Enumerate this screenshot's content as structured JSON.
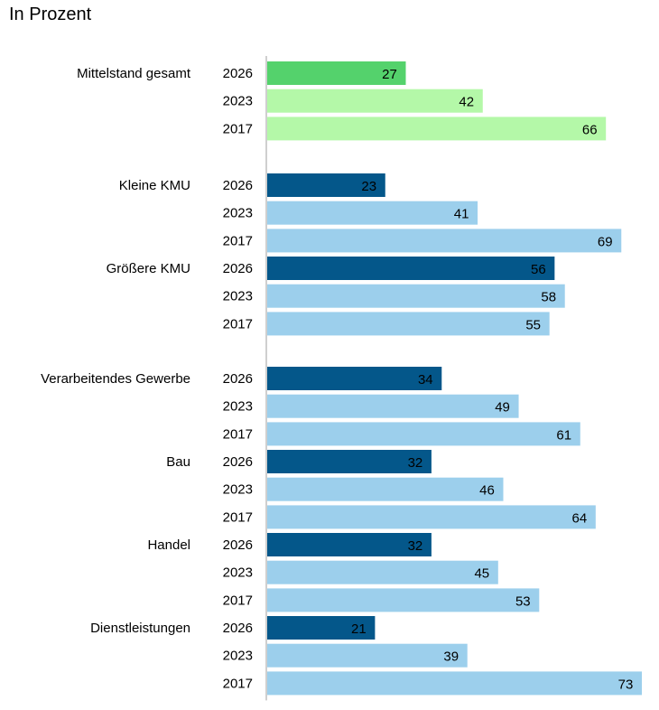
{
  "chart_data": {
    "type": "bar",
    "orientation": "horizontal",
    "title": "In Prozent",
    "xlim": [
      0,
      73
    ],
    "grid": false,
    "colors": {
      "total_current": "#54d26c",
      "total_past": "#b4f8a8",
      "group_current": "#04578a",
      "group_past": "#9ccfec"
    },
    "groups": [
      {
        "label": "Mittelstand gesamt",
        "variant": "total",
        "rows": [
          {
            "year": "2026",
            "value": 27
          },
          {
            "year": "2023",
            "value": 42
          },
          {
            "year": "2017",
            "value": 66
          }
        ]
      },
      {
        "label": "Kleine KMU",
        "variant": "group",
        "rows": [
          {
            "year": "2026",
            "value": 23
          },
          {
            "year": "2023",
            "value": 41
          },
          {
            "year": "2017",
            "value": 69
          }
        ]
      },
      {
        "label": "Größere KMU",
        "variant": "group",
        "rows": [
          {
            "year": "2026",
            "value": 56
          },
          {
            "year": "2023",
            "value": 58
          },
          {
            "year": "2017",
            "value": 55
          }
        ]
      },
      {
        "label": "Verarbeitendes Gewerbe",
        "variant": "group",
        "rows": [
          {
            "year": "2026",
            "value": 34
          },
          {
            "year": "2023",
            "value": 49
          },
          {
            "year": "2017",
            "value": 61
          }
        ]
      },
      {
        "label": "Bau",
        "variant": "group",
        "rows": [
          {
            "year": "2026",
            "value": 32
          },
          {
            "year": "2023",
            "value": 46
          },
          {
            "year": "2017",
            "value": 64
          }
        ]
      },
      {
        "label": "Handel",
        "variant": "group",
        "rows": [
          {
            "year": "2026",
            "value": 32
          },
          {
            "year": "2023",
            "value": 45
          },
          {
            "year": "2017",
            "value": 53
          }
        ]
      },
      {
        "label": "Dienstleistungen",
        "variant": "group",
        "rows": [
          {
            "year": "2026",
            "value": 21
          },
          {
            "year": "2023",
            "value": 39
          },
          {
            "year": "2017",
            "value": 73
          }
        ]
      }
    ]
  }
}
